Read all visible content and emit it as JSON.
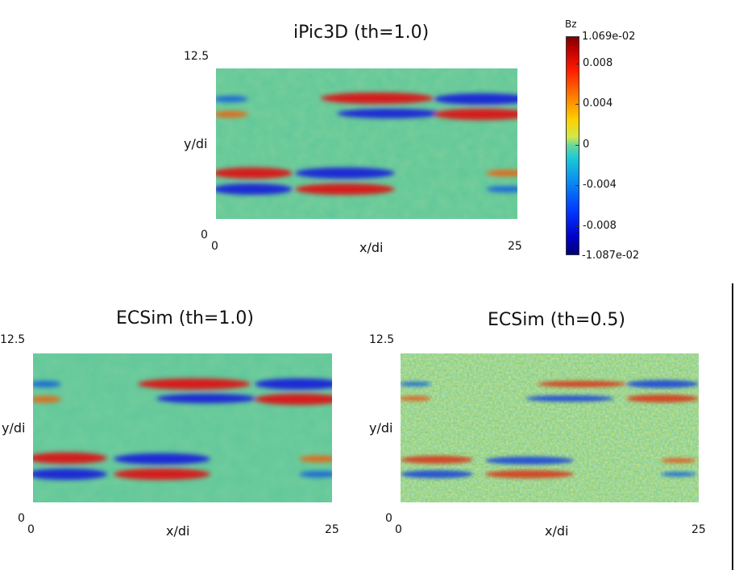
{
  "chart_data": [
    {
      "type": "heatmap",
      "title": "iPic3D (th=1.0)",
      "xlabel": "x/di",
      "ylabel": "y/di",
      "xlim": [
        0,
        25
      ],
      "ylim": [
        0,
        12.5
      ],
      "x_tick_labels": [
        "0",
        "25"
      ],
      "y_tick_labels": [
        "0",
        "12.5"
      ],
      "variable": "Bz"
    },
    {
      "type": "heatmap",
      "title": "ECSim (th=1.0)",
      "xlabel": "x/di",
      "ylabel": "y/di",
      "xlim": [
        0,
        25
      ],
      "ylim": [
        0,
        12.5
      ],
      "x_tick_labels": [
        "0",
        "25"
      ],
      "y_tick_labels": [
        "0",
        "12.5"
      ],
      "variable": "Bz"
    },
    {
      "type": "heatmap",
      "title": "ECSim (th=0.5)",
      "xlabel": "x/di",
      "ylabel": "y/di",
      "xlim": [
        0,
        25
      ],
      "ylim": [
        0,
        12.5
      ],
      "x_tick_labels": [
        "0",
        "25"
      ],
      "y_tick_labels": [
        "0",
        "12.5"
      ],
      "variable": "Bz"
    }
  ],
  "colorbar": {
    "title": "Bz",
    "max_label": "1.069e-02",
    "min_label": "-1.087e-02",
    "max_value": 0.01069,
    "min_value": -0.01087,
    "ticks": [
      {
        "value": 0.008,
        "label": "0.008"
      },
      {
        "value": 0.004,
        "label": "0.004"
      },
      {
        "value": 0.0,
        "label": "0"
      },
      {
        "value": -0.004,
        "label": "-0.004"
      },
      {
        "value": -0.008,
        "label": "-0.008"
      }
    ]
  },
  "colors": {
    "background": "#5fc79a",
    "positive": "#d41a1a",
    "positive_edge": "#f08a2a",
    "negative": "#1a2ad4",
    "negative_edge": "#2a8ef0",
    "noise_warm": "#c8d65a",
    "noise_cool": "#5ab8c8"
  }
}
